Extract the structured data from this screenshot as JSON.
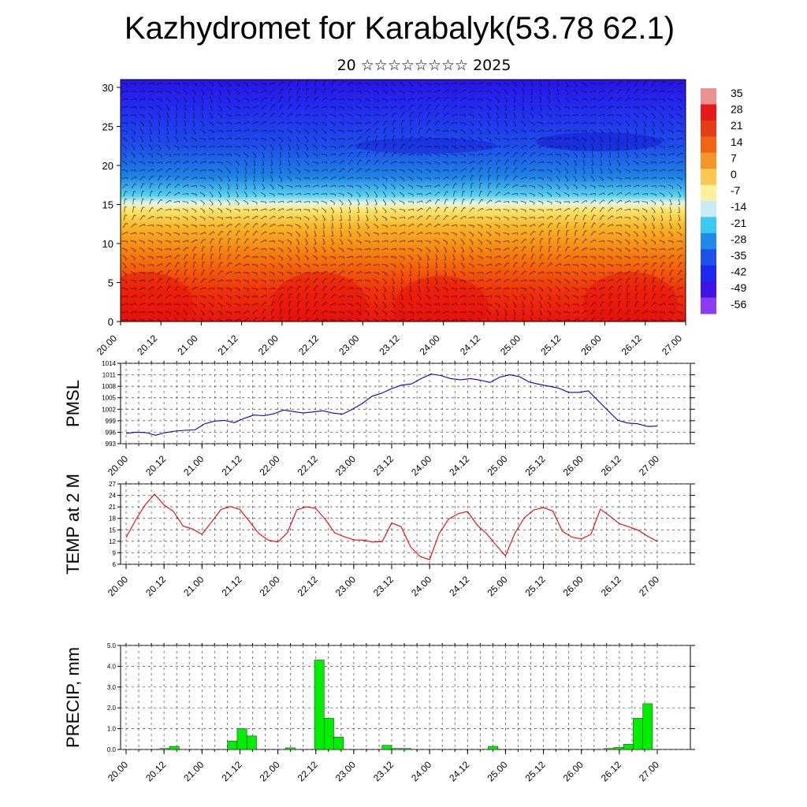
{
  "title": "Kazhydromet for Karabalyk(53.78 62.1)",
  "subtitle": "20 ☆☆☆☆☆☆☆☆ 2025",
  "time_labels": [
    "20.00",
    "20.12",
    "21.00",
    "21.12",
    "22.00",
    "22.12",
    "23.00",
    "23.12",
    "24.00",
    "24.12",
    "25.00",
    "25.12",
    "26.00",
    "26.12",
    "27.00"
  ],
  "chart_data": [
    {
      "type": "heatmap",
      "name": "temperature-wind cross-section",
      "title": "",
      "xlabel": "",
      "ylabel": "",
      "x": [
        "20.00",
        "20.12",
        "21.00",
        "21.12",
        "22.00",
        "22.12",
        "23.00",
        "23.12",
        "24.00",
        "24.12",
        "25.00",
        "25.12",
        "26.00",
        "26.12",
        "27.00"
      ],
      "ylim": [
        0,
        31
      ],
      "yticks": [
        0,
        5,
        10,
        15,
        20,
        25,
        30
      ],
      "colorbar_labels": [
        "35",
        "28",
        "21",
        "14",
        "7",
        "0",
        "-7",
        "-14",
        "-21",
        "-28",
        "-35",
        "-42",
        "-49",
        "-56"
      ],
      "colorbar_colors": [
        "#ef9090",
        "#e61a1a",
        "#e63c14",
        "#f06414",
        "#f59628",
        "#fac850",
        "#fff0a0",
        "#c8ebf5",
        "#3cc8f0",
        "#1e8ce6",
        "#1e50eb",
        "#1e28f0",
        "#3c14e6",
        "#8c3cf5"
      ],
      "wind_barbs": true
    },
    {
      "type": "line",
      "ylabel": "PMSL",
      "ylim": [
        993,
        1014
      ],
      "yticks": [
        993,
        996,
        999,
        1002,
        1005,
        1008,
        1011,
        1014
      ],
      "x_step_hours": 3,
      "series": [
        {
          "color": "#0000cc",
          "values": [
            995.7,
            996.0,
            995.9,
            995.2,
            995.9,
            996.3,
            996.5,
            996.6,
            998.2,
            998.9,
            999.1,
            998.5,
            999.6,
            1000.5,
            1000.3,
            1000.8,
            1001.8,
            1001.4,
            1001.0,
            1001.3,
            1001.6,
            1001.0,
            1000.7,
            1002.0,
            1003.5,
            1005.4,
            1006.2,
            1007.4,
            1008.3,
            1008.6,
            1010.0,
            1011.2,
            1010.8,
            1010.0,
            1009.7,
            1010.0,
            1009.6,
            1009.0,
            1010.4,
            1011.0,
            1010.5,
            1009.1,
            1008.5,
            1008.0,
            1007.5,
            1006.4,
            1006.4,
            1006.8,
            1004.2,
            1001.6,
            999.1,
            998.4,
            998.2,
            997.5,
            997.6
          ]
        }
      ],
      "grid": true
    },
    {
      "type": "line",
      "ylabel": "TEMP at 2 M",
      "ylim": [
        6,
        27
      ],
      "yticks": [
        6,
        9,
        12,
        15,
        18,
        21,
        24,
        27
      ],
      "x_step_hours": 3,
      "series": [
        {
          "color": "#ee0000",
          "values": [
            13.0,
            17.5,
            21.5,
            24.3,
            21.5,
            19.8,
            16.0,
            15.2,
            13.8,
            17.0,
            20.3,
            21.1,
            20.3,
            17.2,
            14.0,
            12.3,
            11.8,
            14.2,
            20.2,
            21.0,
            20.6,
            17.7,
            14.2,
            13.2,
            12.4,
            12.3,
            11.8,
            11.9,
            16.8,
            15.8,
            10.5,
            8.0,
            7.2,
            14.0,
            17.8,
            19.2,
            19.8,
            16.3,
            14.0,
            11.0,
            8.2,
            14.2,
            18.2,
            20.2,
            20.8,
            19.9,
            14.6,
            13.1,
            12.6,
            13.8,
            20.4,
            18.6,
            16.6,
            15.8,
            14.9,
            13.3,
            12.0
          ]
        }
      ],
      "grid": true
    },
    {
      "type": "bar",
      "ylabel": "PRECIP, mm",
      "ylim": [
        0,
        5.0
      ],
      "yticks": [
        "0.0",
        "1.0",
        "2.0",
        "3.0",
        "4.0",
        "5.0"
      ],
      "x_step_hours": 3,
      "bar_color": "#00ee00",
      "values": [
        0,
        0,
        0,
        0,
        0.05,
        0.15,
        0,
        0,
        0,
        0,
        0,
        0.4,
        1.0,
        0.65,
        0,
        0,
        0,
        0.08,
        0,
        0,
        4.3,
        1.5,
        0.6,
        0,
        0,
        0,
        0,
        0.2,
        0.05,
        0.05,
        0,
        0,
        0,
        0,
        0,
        0,
        0,
        0,
        0.15,
        0,
        0,
        0,
        0,
        0,
        0,
        0,
        0,
        0,
        0,
        0,
        0.05,
        0.1,
        0.25,
        1.5,
        2.2,
        0
      ],
      "grid": true
    }
  ]
}
